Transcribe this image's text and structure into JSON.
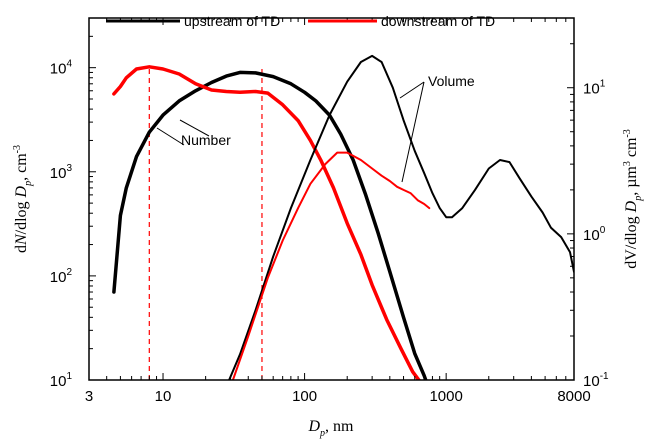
{
  "chart_data": {
    "type": "line",
    "x_scale": "log",
    "y_scale": "log",
    "y2_scale": "log",
    "xlim": [
      3,
      8000
    ],
    "ylim": [
      10,
      30000
    ],
    "y2lim": [
      0.1,
      30
    ],
    "x_ticks": [
      {
        "value": 3,
        "label": "3"
      },
      {
        "value": 10,
        "label": "10"
      },
      {
        "value": 100,
        "label": "100"
      },
      {
        "value": 1000,
        "label": "1000"
      },
      {
        "value": 8000,
        "label": "8000"
      }
    ],
    "y_ticks": [
      {
        "value": 10,
        "base": "10",
        "exp": "1"
      },
      {
        "value": 100,
        "base": "10",
        "exp": "2"
      },
      {
        "value": 1000,
        "base": "10",
        "exp": "3"
      },
      {
        "value": 10000,
        "base": "10",
        "exp": "4"
      }
    ],
    "y2_ticks": [
      {
        "value": 0.1,
        "base": "10",
        "exp": "-1"
      },
      {
        "value": 1,
        "base": "10",
        "exp": "0"
      },
      {
        "value": 10,
        "base": "10",
        "exp": "1"
      }
    ],
    "xlabel": {
      "main": "D",
      "sub": "p",
      "unit": ", nm"
    },
    "ylabel": {
      "pre": "d",
      "ital": "N",
      "mid": "/dlog ",
      "d": "D",
      "sub": "p",
      "unit": ", cm",
      "sup": "-3"
    },
    "y2label": {
      "text": "dV/dlog ",
      "d": "D",
      "sub": "p",
      "unit": ", µm",
      "sup1": "3",
      "cm": " cm",
      "sup2": "-3"
    },
    "legend": {
      "position": "top",
      "entries": [
        {
          "label": "upstream of TD",
          "color": "#000000"
        },
        {
          "label": "downstream of TD",
          "color": "#ff0000"
        }
      ]
    },
    "annotations": [
      {
        "text": "Number"
      },
      {
        "text": "Volume"
      }
    ],
    "reference_lines": [
      {
        "x": 8,
        "color": "#ff0000",
        "style": "dashed"
      },
      {
        "x": 50,
        "color": "#ff0000",
        "style": "dashed"
      }
    ],
    "series": [
      {
        "name": "upstream of TD",
        "kind": "number",
        "axis": "left",
        "color": "#000000",
        "x": [
          4.5,
          5,
          5.5,
          6.5,
          8,
          10,
          13,
          17,
          22,
          28,
          35,
          45,
          60,
          80,
          100,
          120,
          150,
          180,
          220,
          270,
          330,
          400,
          500,
          600,
          700,
          760
        ],
        "y": [
          70,
          380,
          700,
          1400,
          2400,
          3500,
          4800,
          6000,
          7200,
          8300,
          9000,
          8900,
          8200,
          7000,
          5800,
          4800,
          3500,
          2300,
          1300,
          600,
          260,
          110,
          40,
          18,
          11,
          8
        ]
      },
      {
        "name": "downstream of TD",
        "kind": "number",
        "axis": "left",
        "color": "#ff0000",
        "x": [
          4.5,
          5,
          5.5,
          6.5,
          8,
          10,
          13,
          17,
          22,
          28,
          35,
          45,
          55,
          70,
          90,
          110,
          130,
          160,
          200,
          250,
          300,
          380,
          480,
          580,
          680,
          720
        ],
        "y": [
          5600,
          6600,
          8000,
          9700,
          10200,
          9700,
          8700,
          7000,
          6100,
          5900,
          5800,
          5900,
          5700,
          4400,
          3100,
          2000,
          1300,
          700,
          320,
          160,
          82,
          38,
          20,
          12,
          9,
          8
        ]
      },
      {
        "name": "upstream of TD",
        "kind": "volume",
        "axis": "right",
        "color": "#000000",
        "x": [
          28,
          35,
          45,
          60,
          80,
          110,
          150,
          200,
          250,
          300,
          350,
          420,
          500,
          600,
          700,
          800,
          900,
          1000,
          1100,
          1300,
          1600,
          2000,
          2400,
          2800,
          3300,
          4000,
          4800,
          5500,
          6500,
          7500,
          8000
        ],
        "y": [
          0.09,
          0.15,
          0.3,
          0.7,
          1.5,
          3.2,
          6.5,
          11,
          15,
          16.5,
          15,
          10,
          6,
          3.7,
          2.6,
          1.9,
          1.5,
          1.3,
          1.3,
          1.5,
          2.0,
          2.8,
          3.2,
          3.1,
          2.4,
          1.8,
          1.4,
          1.1,
          0.95,
          0.75,
          0.55
        ]
      },
      {
        "name": "downstream of TD",
        "kind": "volume",
        "axis": "right",
        "color": "#ff0000",
        "x": [
          30,
          40,
          55,
          70,
          90,
          110,
          140,
          170,
          200,
          250,
          300,
          350,
          400,
          450,
          500,
          560,
          630,
          700,
          760
        ],
        "y": [
          0.09,
          0.2,
          0.5,
          0.9,
          1.5,
          2.2,
          3.0,
          3.6,
          3.6,
          3.2,
          2.8,
          2.5,
          2.3,
          2.1,
          2.0,
          1.9,
          1.7,
          1.6,
          1.5
        ]
      }
    ]
  }
}
